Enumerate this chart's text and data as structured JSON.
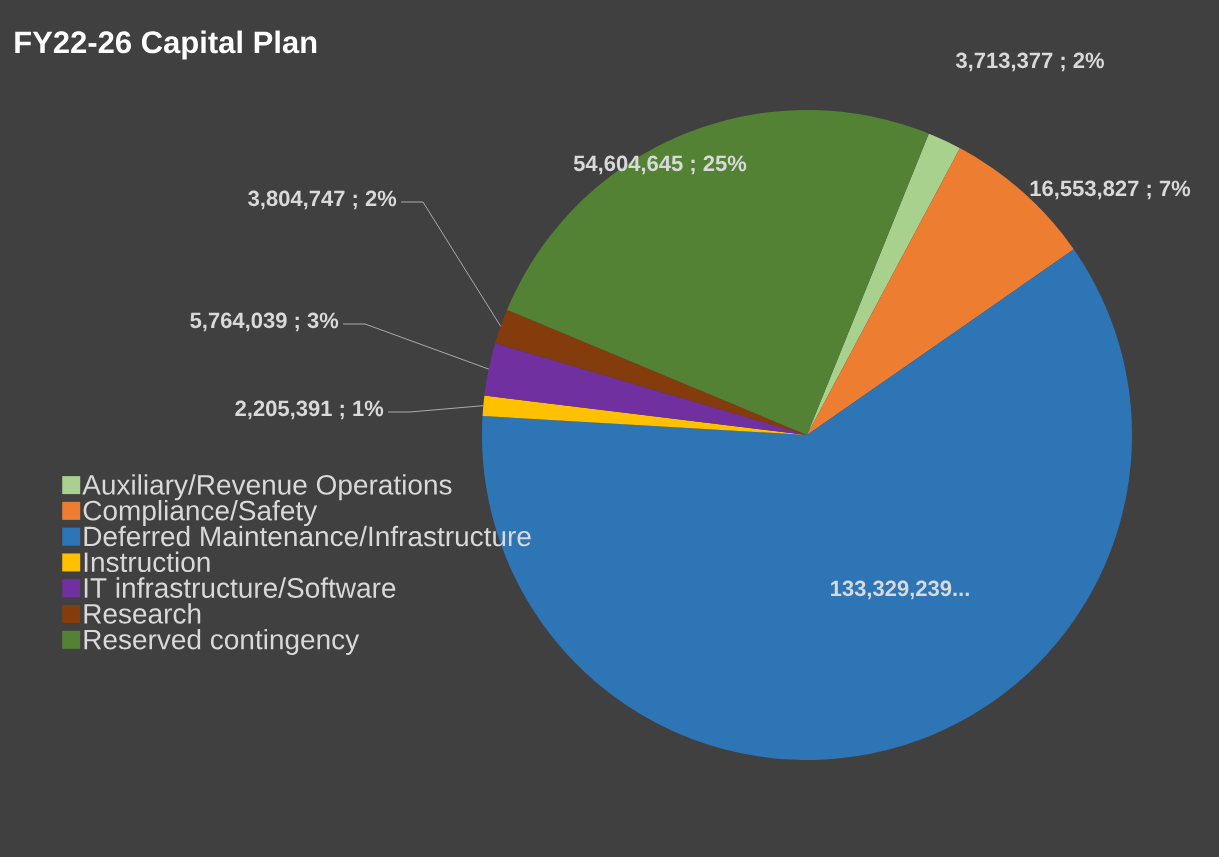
{
  "chart_data": {
    "type": "pie",
    "title": "FY22-26 Capital Plan",
    "categories": [
      "Auxiliary/Revenue Operations",
      "Compliance/Safety",
      "Deferred Maintenance/Infrastructure",
      "Instruction",
      "IT infrastructure/Software",
      "Research",
      "Reserved contingency"
    ],
    "values": [
      3713377,
      16553827,
      133329239,
      2205391,
      5764039,
      3804747,
      54604645
    ],
    "colors": [
      "#a9d18e",
      "#ed7d31",
      "#2e75b6",
      "#ffc000",
      "#7030a0",
      "#843c0c",
      "#548235"
    ],
    "value_labels": [
      "3,713,377 ; 2%",
      "16,553,827 ; 7%",
      "133,329,239...",
      "2,205,391 ; 1%",
      "5,764,039 ; 3%",
      "3,804,747 ; 2%",
      "54,604,645 ; 25%"
    ],
    "legend": "left"
  }
}
